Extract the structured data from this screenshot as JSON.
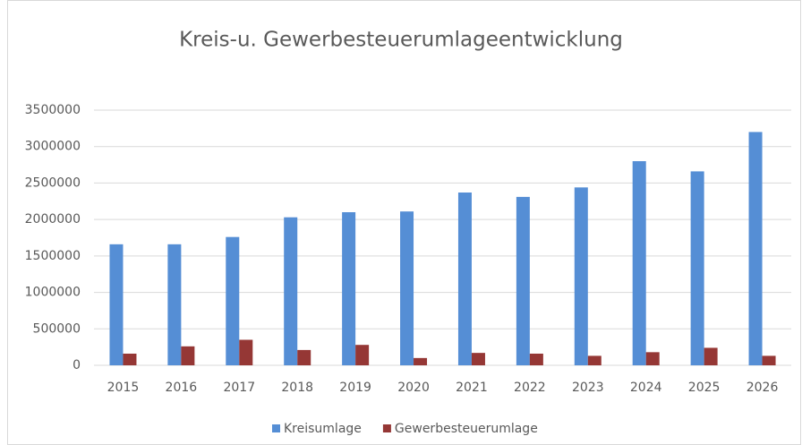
{
  "chart_data": {
    "type": "bar",
    "title": "Kreis-u. Gewerbesteuerumlageentwicklung",
    "categories": [
      "2015",
      "2016",
      "2017",
      "2018",
      "2019",
      "2020",
      "2021",
      "2022",
      "2023",
      "2024",
      "2025",
      "2026"
    ],
    "series": [
      {
        "name": "Kreisumlage",
        "color": "#558ed5",
        "values": [
          1660000,
          1660000,
          1760000,
          2030000,
          2100000,
          2110000,
          2370000,
          2310000,
          2440000,
          2800000,
          2660000,
          3200000
        ]
      },
      {
        "name": "Gewerbesteuerumlage",
        "color": "#953735",
        "values": [
          160000,
          260000,
          350000,
          210000,
          280000,
          100000,
          170000,
          160000,
          130000,
          180000,
          240000,
          130000
        ]
      }
    ],
    "ylim": [
      0,
      3500000
    ],
    "yticks": [
      0,
      500000,
      1000000,
      1500000,
      2000000,
      2500000,
      3000000,
      3500000
    ],
    "grid": true,
    "legend": "bottom"
  }
}
